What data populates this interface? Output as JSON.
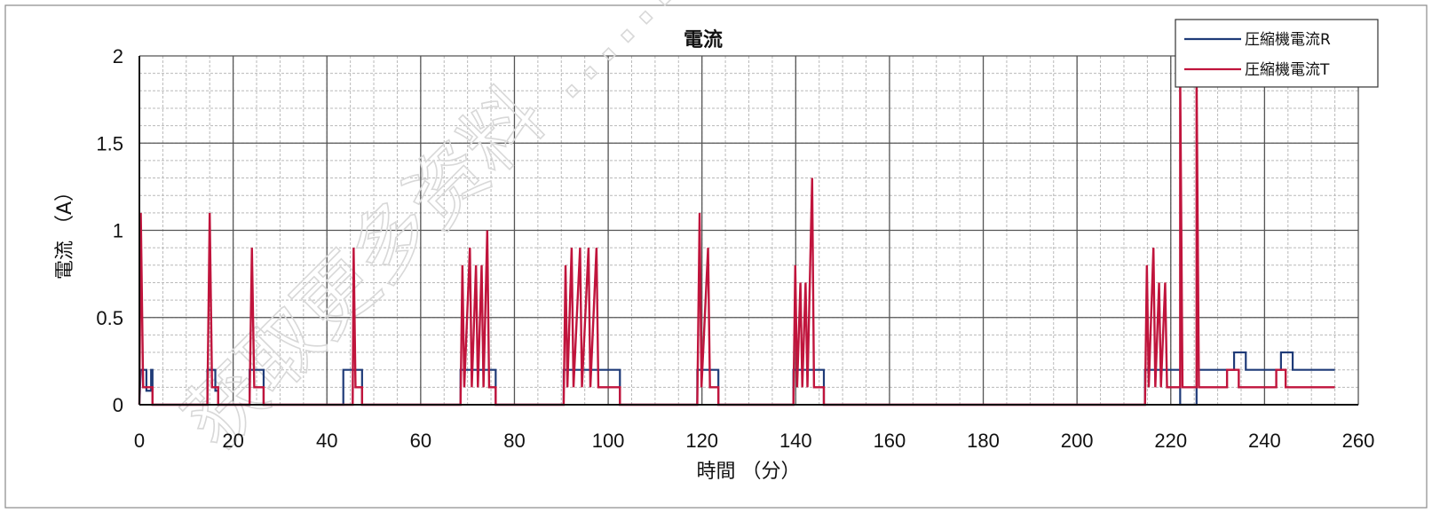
{
  "chart_data": {
    "type": "line",
    "title": "電流",
    "xlabel": "時間 （分）",
    "ylabel": "電流 （A）",
    "xlim": [
      0,
      260
    ],
    "ylim": [
      0,
      2
    ],
    "xticks": [
      0,
      20,
      40,
      60,
      80,
      100,
      120,
      140,
      160,
      180,
      200,
      220,
      240,
      260
    ],
    "yticks": [
      0,
      0.5,
      1,
      1.5,
      2
    ],
    "xtick_labels": [
      "0",
      "20",
      "40",
      "60",
      "80",
      "100",
      "120",
      "140",
      "160",
      "180",
      "200",
      "220",
      "240",
      "260"
    ],
    "ytick_labels": [
      "0",
      "0.5",
      "1",
      "1.5",
      "2"
    ],
    "grid": true,
    "legend_position": "top-right",
    "watermark": "获取更多资料 ……",
    "series": [
      {
        "name": "圧縮機電流R",
        "color": "#1f3b78",
        "points": [
          [
            0,
            0
          ],
          [
            0.3,
            0.2
          ],
          [
            1.5,
            0.2
          ],
          [
            1.5,
            0.08
          ],
          [
            2.5,
            0.08
          ],
          [
            2.5,
            0.2
          ],
          [
            2.8,
            0.2
          ],
          [
            2.8,
            0
          ],
          [
            14.5,
            0
          ],
          [
            14.5,
            0.2
          ],
          [
            16.2,
            0.2
          ],
          [
            16.2,
            0.08
          ],
          [
            16.8,
            0.08
          ],
          [
            16.8,
            0
          ],
          [
            23.5,
            0
          ],
          [
            23.5,
            0.2
          ],
          [
            26.5,
            0.2
          ],
          [
            26.5,
            0
          ],
          [
            43.5,
            0
          ],
          [
            43.5,
            0.2
          ],
          [
            47.5,
            0.2
          ],
          [
            47.5,
            0
          ],
          [
            68.5,
            0
          ],
          [
            68.5,
            0.2
          ],
          [
            76,
            0.2
          ],
          [
            76,
            0
          ],
          [
            90.5,
            0
          ],
          [
            90.5,
            0.2
          ],
          [
            102.5,
            0.2
          ],
          [
            102.5,
            0
          ],
          [
            119,
            0
          ],
          [
            119,
            0.2
          ],
          [
            123.5,
            0.2
          ],
          [
            123.5,
            0
          ],
          [
            139.5,
            0
          ],
          [
            139.5,
            0.2
          ],
          [
            146,
            0.2
          ],
          [
            146,
            0
          ],
          [
            214.5,
            0
          ],
          [
            214.5,
            0.2
          ],
          [
            222,
            0.2
          ],
          [
            222,
            0
          ],
          [
            225.5,
            0
          ],
          [
            225.5,
            0.2
          ],
          [
            233.5,
            0.2
          ],
          [
            233.5,
            0.3
          ],
          [
            236,
            0.3
          ],
          [
            236,
            0.2
          ],
          [
            243.5,
            0.2
          ],
          [
            243.5,
            0.3
          ],
          [
            246,
            0.3
          ],
          [
            246,
            0.2
          ],
          [
            255,
            0.2
          ]
        ]
      },
      {
        "name": "圧縮機電流T",
        "color": "#c0143c",
        "points": [
          [
            0,
            0
          ],
          [
            0.3,
            1.1
          ],
          [
            0.8,
            0.1
          ],
          [
            2.8,
            0.1
          ],
          [
            2.8,
            0
          ],
          [
            14.5,
            0
          ],
          [
            15,
            1.1
          ],
          [
            15.5,
            0.1
          ],
          [
            16.8,
            0.1
          ],
          [
            16.8,
            0
          ],
          [
            23.5,
            0
          ],
          [
            24,
            0.9
          ],
          [
            24.5,
            0.1
          ],
          [
            26.5,
            0.1
          ],
          [
            26.5,
            0
          ],
          [
            45.5,
            0
          ],
          [
            45.7,
            0.9
          ],
          [
            46.1,
            0.1
          ],
          [
            47.5,
            0.1
          ],
          [
            47.5,
            0
          ],
          [
            68.5,
            0
          ],
          [
            68.9,
            0.8
          ],
          [
            69.3,
            0.1
          ],
          [
            70.5,
            0.9
          ],
          [
            70.9,
            0.1
          ],
          [
            71.8,
            0.8
          ],
          [
            72.2,
            0.1
          ],
          [
            73,
            0.8
          ],
          [
            73.4,
            0.1
          ],
          [
            74.2,
            1.0
          ],
          [
            74.6,
            0.1
          ],
          [
            76,
            0.1
          ],
          [
            76,
            0
          ],
          [
            90.5,
            0
          ],
          [
            90.9,
            0.8
          ],
          [
            91.3,
            0.1
          ],
          [
            92.2,
            0.9
          ],
          [
            92.6,
            0.1
          ],
          [
            94,
            0.9
          ],
          [
            94.4,
            0.1
          ],
          [
            95.8,
            0.9
          ],
          [
            96.2,
            0.1
          ],
          [
            97.5,
            0.9
          ],
          [
            97.9,
            0.1
          ],
          [
            102.5,
            0.1
          ],
          [
            102.5,
            0
          ],
          [
            119,
            0
          ],
          [
            119.5,
            1.1
          ],
          [
            119.9,
            0.1
          ],
          [
            121.3,
            0.9
          ],
          [
            121.7,
            0.1
          ],
          [
            123.5,
            0.1
          ],
          [
            123.5,
            0
          ],
          [
            139.5,
            0
          ],
          [
            139.9,
            0.8
          ],
          [
            140.3,
            0.1
          ],
          [
            141,
            0.7
          ],
          [
            141.4,
            0.1
          ],
          [
            142.1,
            0.7
          ],
          [
            142.5,
            0.1
          ],
          [
            143.5,
            1.3
          ],
          [
            143.9,
            0.1
          ],
          [
            146,
            0.1
          ],
          [
            146,
            0
          ],
          [
            214.5,
            0
          ],
          [
            214.9,
            0.8
          ],
          [
            215.3,
            0.1
          ],
          [
            216.3,
            0.9
          ],
          [
            216.7,
            0.1
          ],
          [
            217.5,
            0.7
          ],
          [
            217.9,
            0.1
          ],
          [
            218.8,
            0.7
          ],
          [
            219.2,
            0.1
          ],
          [
            222,
            0.1
          ],
          [
            222,
            1.9
          ],
          [
            222.5,
            0.1
          ],
          [
            225.5,
            0.1
          ],
          [
            225.5,
            1.9
          ],
          [
            226,
            0.1
          ],
          [
            232,
            0.1
          ],
          [
            232,
            0.2
          ],
          [
            234.5,
            0.2
          ],
          [
            234.5,
            0.1
          ],
          [
            242.5,
            0.1
          ],
          [
            242.5,
            0.2
          ],
          [
            244.5,
            0.2
          ],
          [
            244.5,
            0.1
          ],
          [
            255,
            0.1
          ]
        ]
      }
    ]
  }
}
